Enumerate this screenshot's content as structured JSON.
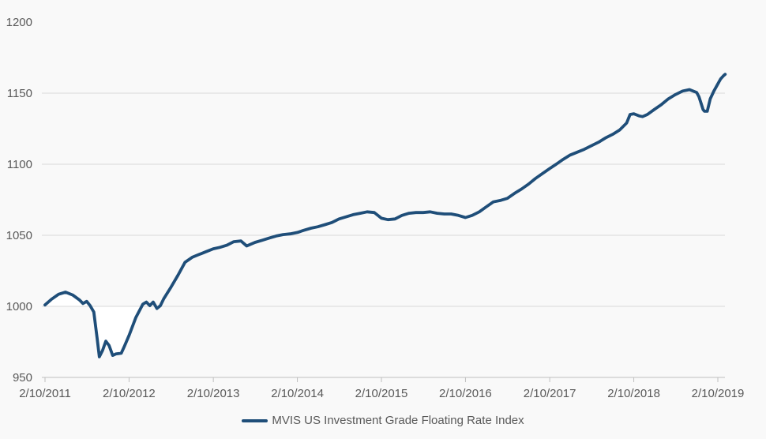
{
  "colors": {
    "background": "#f9f9f9",
    "gridline": "#d9d9d9",
    "axis_line": "#bfbfbf",
    "tick_mark": "#bfbfbf",
    "label_text": "#595959",
    "series_line": "#1f4e79",
    "baseline_fill": "#ffffff"
  },
  "legend": {
    "position": "bottom-center"
  },
  "chart_data": {
    "type": "line",
    "title": "",
    "grid": "horizontal",
    "x_axis": {
      "tick_labels": [
        "2/10/2011",
        "2/10/2012",
        "2/10/2013",
        "2/10/2014",
        "2/10/2015",
        "2/10/2016",
        "2/10/2017",
        "2/10/2018",
        "2/10/2019"
      ],
      "tick_dates": [
        "2011-02-10",
        "2012-02-10",
        "2013-02-10",
        "2014-02-10",
        "2015-02-10",
        "2016-02-10",
        "2017-02-10",
        "2018-02-10",
        "2019-02-10"
      ],
      "range_dates": [
        "2011-02-10",
        "2019-03-14"
      ]
    },
    "y_axis": {
      "min": 950,
      "max": 1200,
      "step": 50,
      "tick_labels": [
        "950",
        "1000",
        "1050",
        "1100",
        "1150",
        "1200"
      ],
      "gridline_values": [
        1000,
        1050,
        1100,
        1150
      ]
    },
    "baseline_fill": {
      "comment": "white area enclosed between the curve and the 1000 level during 2011-2012",
      "baseline_value": 1000,
      "from_date": "2011-02-10",
      "to_date": "2012-04-10",
      "color": "#ffffff"
    },
    "series": [
      {
        "name": "MVIS US Investment Grade Floating Rate Index",
        "color": "#1f4e79",
        "points": [
          [
            "2011-02-10",
            1001
          ],
          [
            "2011-03-10",
            1005
          ],
          [
            "2011-04-10",
            1008.5
          ],
          [
            "2011-05-10",
            1010
          ],
          [
            "2011-06-10",
            1008
          ],
          [
            "2011-07-10",
            1004.5
          ],
          [
            "2011-07-25",
            1002
          ],
          [
            "2011-08-10",
            1003.5
          ],
          [
            "2011-08-25",
            1000.5
          ],
          [
            "2011-09-10",
            996
          ],
          [
            "2011-09-24",
            978
          ],
          [
            "2011-10-04",
            964.5
          ],
          [
            "2011-10-18",
            969
          ],
          [
            "2011-11-01",
            975.5
          ],
          [
            "2011-11-15",
            972.5
          ],
          [
            "2011-12-01",
            965.5
          ],
          [
            "2011-12-15",
            966.5
          ],
          [
            "2012-01-07",
            967
          ],
          [
            "2012-01-21",
            972
          ],
          [
            "2012-02-10",
            979.5
          ],
          [
            "2012-03-10",
            992
          ],
          [
            "2012-04-10",
            1001.5
          ],
          [
            "2012-04-25",
            1003
          ],
          [
            "2012-05-10",
            1000.5
          ],
          [
            "2012-05-25",
            1003
          ],
          [
            "2012-06-10",
            998.5
          ],
          [
            "2012-06-25",
            1000.5
          ],
          [
            "2012-07-10",
            1005.5
          ],
          [
            "2012-08-10",
            1013.5
          ],
          [
            "2012-09-10",
            1022
          ],
          [
            "2012-10-10",
            1031
          ],
          [
            "2012-11-10",
            1034.5
          ],
          [
            "2012-12-10",
            1036.5
          ],
          [
            "2013-01-10",
            1038.5
          ],
          [
            "2013-02-10",
            1040.5
          ],
          [
            "2013-03-10",
            1041.5
          ],
          [
            "2013-04-10",
            1043
          ],
          [
            "2013-05-10",
            1045.5
          ],
          [
            "2013-06-10",
            1046
          ],
          [
            "2013-07-05",
            1042.5
          ],
          [
            "2013-08-10",
            1045
          ],
          [
            "2013-09-10",
            1046.5
          ],
          [
            "2013-10-10",
            1048
          ],
          [
            "2013-11-10",
            1049.5
          ],
          [
            "2013-12-10",
            1050.5
          ],
          [
            "2014-01-10",
            1051
          ],
          [
            "2014-02-10",
            1052
          ],
          [
            "2014-03-10",
            1053.5
          ],
          [
            "2014-04-10",
            1055
          ],
          [
            "2014-05-10",
            1056
          ],
          [
            "2014-06-10",
            1057.5
          ],
          [
            "2014-07-10",
            1059
          ],
          [
            "2014-08-10",
            1061.5
          ],
          [
            "2014-09-10",
            1063
          ],
          [
            "2014-10-10",
            1064.5
          ],
          [
            "2014-11-10",
            1065.5
          ],
          [
            "2014-12-10",
            1066.5
          ],
          [
            "2015-01-10",
            1066
          ],
          [
            "2015-02-10",
            1062
          ],
          [
            "2015-03-10",
            1061
          ],
          [
            "2015-04-10",
            1061.5
          ],
          [
            "2015-05-10",
            1064
          ],
          [
            "2015-06-10",
            1065.5
          ],
          [
            "2015-07-10",
            1066
          ],
          [
            "2015-08-10",
            1066
          ],
          [
            "2015-09-10",
            1066.5
          ],
          [
            "2015-10-10",
            1065.5
          ],
          [
            "2015-11-10",
            1065
          ],
          [
            "2015-12-10",
            1065
          ],
          [
            "2016-01-10",
            1064
          ],
          [
            "2016-02-10",
            1062.5
          ],
          [
            "2016-03-10",
            1064
          ],
          [
            "2016-04-10",
            1066.5
          ],
          [
            "2016-05-10",
            1070
          ],
          [
            "2016-06-10",
            1073.5
          ],
          [
            "2016-07-10",
            1074.5
          ],
          [
            "2016-08-10",
            1076
          ],
          [
            "2016-09-10",
            1079.5
          ],
          [
            "2016-10-10",
            1082.5
          ],
          [
            "2016-11-10",
            1086
          ],
          [
            "2016-12-10",
            1090
          ],
          [
            "2017-01-10",
            1093.5
          ],
          [
            "2017-02-10",
            1097
          ],
          [
            "2017-03-10",
            1100
          ],
          [
            "2017-04-10",
            1103.5
          ],
          [
            "2017-05-10",
            1106.5
          ],
          [
            "2017-06-10",
            1108.5
          ],
          [
            "2017-07-10",
            1110.5
          ],
          [
            "2017-08-10",
            1113
          ],
          [
            "2017-09-10",
            1115.5
          ],
          [
            "2017-10-10",
            1118.5
          ],
          [
            "2017-11-10",
            1121
          ],
          [
            "2017-12-10",
            1124
          ],
          [
            "2018-01-10",
            1129
          ],
          [
            "2018-01-25",
            1135
          ],
          [
            "2018-02-10",
            1135.5
          ],
          [
            "2018-03-05",
            1134
          ],
          [
            "2018-03-20",
            1133.5
          ],
          [
            "2018-04-10",
            1135
          ],
          [
            "2018-05-10",
            1138.5
          ],
          [
            "2018-06-10",
            1142
          ],
          [
            "2018-07-10",
            1146
          ],
          [
            "2018-08-10",
            1149
          ],
          [
            "2018-09-10",
            1151.5
          ],
          [
            "2018-10-10",
            1152.5
          ],
          [
            "2018-11-10",
            1150.5
          ],
          [
            "2018-11-20",
            1147.5
          ],
          [
            "2018-11-30",
            1142.5
          ],
          [
            "2018-12-08",
            1138.5
          ],
          [
            "2018-12-14",
            1137.3
          ],
          [
            "2018-12-26",
            1137.3
          ],
          [
            "2019-01-08",
            1146
          ],
          [
            "2019-01-24",
            1151.5
          ],
          [
            "2019-02-10",
            1156.5
          ],
          [
            "2019-02-22",
            1160
          ],
          [
            "2019-03-08",
            1162.5
          ],
          [
            "2019-03-14",
            1163.3
          ]
        ]
      }
    ]
  }
}
